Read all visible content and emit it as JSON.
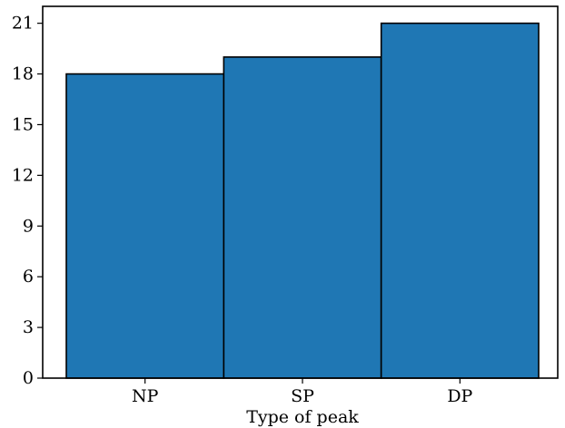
{
  "chart_data": {
    "type": "bar",
    "categories": [
      "NP",
      "SP",
      "DP"
    ],
    "values": [
      18,
      19,
      21
    ],
    "title": "",
    "xlabel": "Type of peak",
    "ylabel": "",
    "ylim": [
      0,
      22
    ],
    "yticks": [
      0,
      3,
      6,
      9,
      12,
      15,
      18,
      21
    ],
    "grid": false,
    "bar_color": "#1f77b4",
    "edge_color": "#000000"
  }
}
